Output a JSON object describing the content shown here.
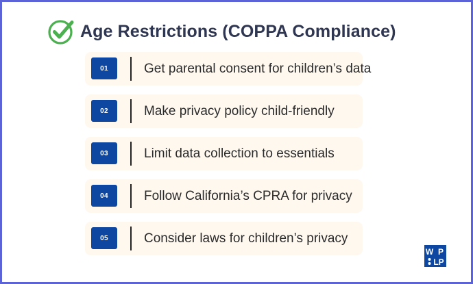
{
  "header": {
    "title": "Age Restrictions (COPPA Compliance)",
    "icon": "check-circle-icon",
    "icon_color": "#4caf50"
  },
  "items": [
    {
      "number": "01",
      "label": "Get parental consent for children’s data"
    },
    {
      "number": "02",
      "label": "Make privacy policy child-friendly"
    },
    {
      "number": "03",
      "label": "Limit data collection to essentials"
    },
    {
      "number": "04",
      "label": "Follow California’s CPRA for privacy"
    },
    {
      "number": "05",
      "label": "Consider laws for children’s privacy"
    }
  ],
  "logo": {
    "text": "WPLP",
    "icon": "wplp-logo"
  },
  "colors": {
    "frame_border": "#5b63d6",
    "badge": "#0d47a1",
    "item_background": "#fff8ef",
    "title": "#2f3651"
  }
}
